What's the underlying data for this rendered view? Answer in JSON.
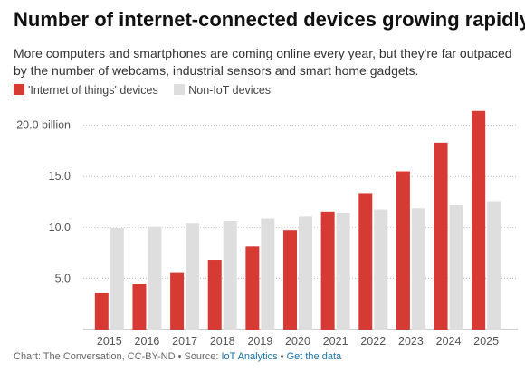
{
  "title": "Number of internet-connected devices growing rapidly",
  "subtitle": "More computers and smartphones are coming online every year, but they're far outpaced by the number of webcams, industrial sensors and smart home gadgets.",
  "legend": [
    {
      "label": "'Internet of things' devices",
      "color": "#d63a33"
    },
    {
      "label": "Non-IoT devices",
      "color": "#dedede"
    }
  ],
  "chart_data": {
    "type": "bar",
    "categories": [
      "2015",
      "2016",
      "2017",
      "2018",
      "2019",
      "2020",
      "2021",
      "2022",
      "2023",
      "2024",
      "2025"
    ],
    "series": [
      {
        "name": "'Internet of things' devices",
        "color": "#d63a33",
        "values": [
          3.6,
          4.5,
          5.6,
          6.8,
          8.1,
          9.7,
          11.5,
          13.3,
          15.5,
          18.3,
          21.4
        ]
      },
      {
        "name": "Non-IoT devices",
        "color": "#dedede",
        "values": [
          9.9,
          10.1,
          10.4,
          10.6,
          10.9,
          11.1,
          11.4,
          11.7,
          11.9,
          12.2,
          12.5
        ]
      }
    ],
    "yticks": [
      5,
      10,
      15,
      20
    ],
    "ytick_labels": [
      "5.0",
      "10.0",
      "15.0",
      "20.0 billion"
    ],
    "ylim": [
      0,
      23
    ],
    "grid": true,
    "legend_position": "top-left"
  },
  "footer": {
    "credit": "Chart: The Conversation, CC-BY-ND",
    "separator1": " • Source: ",
    "source_link": "IoT Analytics",
    "separator2": " • ",
    "data_link": "Get the data"
  }
}
